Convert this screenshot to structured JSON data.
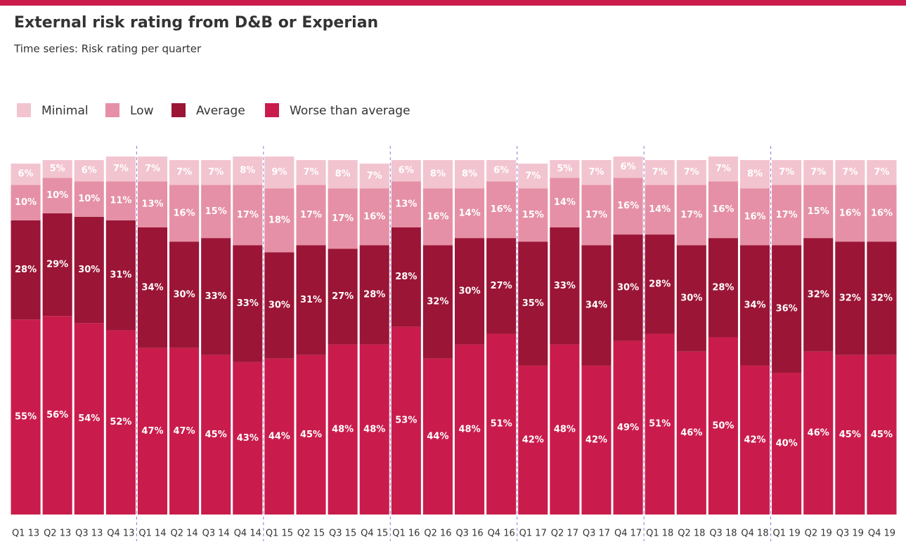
{
  "chart_data": {
    "type": "stacked-bar",
    "title": "External risk rating from D&B or Experian",
    "subtitle": "Time series:  Risk rating per quarter",
    "categories": [
      "Q1 13",
      "Q2 13",
      "Q3 13",
      "Q4 13",
      "Q1 14",
      "Q2 14",
      "Q3 14",
      "Q4 14",
      "Q1 15",
      "Q2 15",
      "Q3 15",
      "Q4 15",
      "Q1 16",
      "Q2 16",
      "Q3 16",
      "Q4 16",
      "Q1 17",
      "Q2 17",
      "Q3 17",
      "Q4 17",
      "Q1 18",
      "Q2 18",
      "Q3 18",
      "Q4 18",
      "Q1 19",
      "Q2 19",
      "Q3 19",
      "Q4 19"
    ],
    "series": [
      {
        "name": "Worse than average",
        "color": "#c91c4c",
        "values": [
          55,
          56,
          54,
          52,
          47,
          47,
          45,
          43,
          44,
          45,
          48,
          48,
          53,
          44,
          48,
          51,
          42,
          48,
          42,
          49,
          51,
          46,
          50,
          42,
          40,
          46,
          45,
          45
        ],
        "value_labels": [
          "55%",
          "56%",
          "54%",
          "52%",
          "47%",
          "47%",
          "45%",
          "43%",
          "44%",
          "45%",
          "48%",
          "48%",
          "53%",
          "44%",
          "48%",
          "51%",
          "42%",
          "48%",
          "42%",
          "49%",
          "51%",
          "46%",
          "50%",
          "42%",
          "40%",
          "46%",
          "45%",
          "45%"
        ]
      },
      {
        "name": "Average",
        "color": "#9b1536",
        "values": [
          28,
          29,
          30,
          31,
          34,
          30,
          33,
          33,
          30,
          31,
          27,
          28,
          28,
          32,
          30,
          27,
          35,
          33,
          34,
          30,
          28,
          30,
          28,
          34,
          36,
          32,
          32,
          32
        ],
        "value_labels": [
          "28%",
          "29%",
          "30%",
          "31%",
          "34%",
          "30%",
          "33%",
          "33%",
          "30%",
          "31%",
          "27%",
          "28%",
          "28%",
          "32%",
          "30%",
          "27%",
          "35%",
          "33%",
          "34%",
          "30%",
          "28%",
          "30%",
          "28%",
          "34%",
          "36%",
          "32%",
          "32%",
          "32%"
        ]
      },
      {
        "name": "Low",
        "color": "#e590a6",
        "values": [
          10,
          10,
          10,
          11,
          13,
          16,
          15,
          17,
          18,
          17,
          17,
          16,
          13,
          16,
          14,
          16,
          15,
          14,
          17,
          16,
          14,
          17,
          16,
          16,
          17,
          15,
          16,
          16
        ],
        "value_labels": [
          "10%",
          "10%",
          "10%",
          "11%",
          "13%",
          "16%",
          "15%",
          "17%",
          "18%",
          "17%",
          "17%",
          "16%",
          "13%",
          "16%",
          "14%",
          "16%",
          "15%",
          "14%",
          "17%",
          "16%",
          "14%",
          "17%",
          "16%",
          "16%",
          "17%",
          "15%",
          "16%",
          "16%"
        ]
      },
      {
        "name": "Minimal",
        "color": "#f2c4d0",
        "values": [
          6,
          5,
          6,
          7,
          7,
          7,
          7,
          8,
          9,
          7,
          8,
          7,
          6,
          8,
          8,
          6,
          7,
          5,
          7,
          6,
          7,
          7,
          7,
          8,
          7,
          7,
          7,
          7
        ],
        "value_labels": [
          "6%",
          "5%",
          "6%",
          "7%",
          "7%",
          "7%",
          "7%",
          "8%",
          "9%",
          "7%",
          "8%",
          "7%",
          "6%",
          "8%",
          "8%",
          "6%",
          "7%",
          "5%",
          "7%",
          "6%",
          "7%",
          "7%",
          "7%",
          "8%",
          "7%",
          "7%",
          "7%",
          "7%"
        ]
      }
    ]
  }
}
